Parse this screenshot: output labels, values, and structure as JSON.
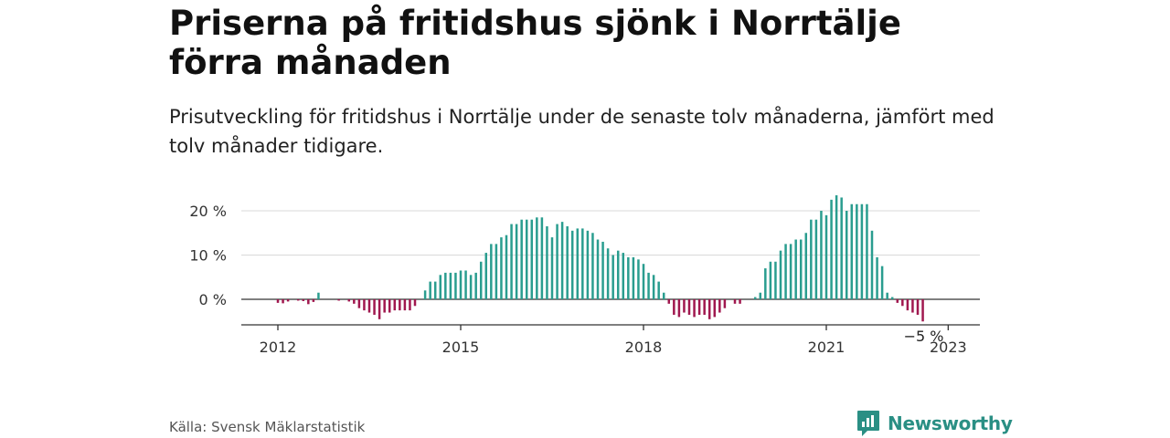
{
  "header": {
    "title": "Priserna på fritidshus sjönk i Norrtälje förra månaden",
    "subtitle": "Prisutveckling för fritidshus i Norrtälje under de senaste tolv månaderna, jämfört med tolv månader tidigare."
  },
  "footer": {
    "source": "Källa: Svensk Mäklarstatistik",
    "brand": "Newsworthy"
  },
  "colors": {
    "positive": "#2a9d8f",
    "negative": "#a0184f",
    "brand": "#2a8f84",
    "grid": "#d9d9d9"
  },
  "chart_data": {
    "type": "bar",
    "ylim": [
      -6,
      24
    ],
    "yticks": [
      0,
      10,
      20
    ],
    "ytick_labels": [
      "0 %",
      "10 %",
      "20 %"
    ],
    "xtick_labels": [
      {
        "label": "2012",
        "month_index": 0
      },
      {
        "label": "2015",
        "month_index": 36
      },
      {
        "label": "2018",
        "month_index": 72
      },
      {
        "label": "2021",
        "month_index": 108
      },
      {
        "label": "2023",
        "month_index": 132
      }
    ],
    "grid": true,
    "last_label": "−5 %",
    "x_start": "2012-01",
    "values": [
      -0.8,
      -0.9,
      -0.5,
      null,
      -0.3,
      -0.4,
      -1.1,
      -0.6,
      1.5,
      null,
      null,
      null,
      -0.3,
      null,
      -0.5,
      -1.0,
      -2.0,
      -2.5,
      -3.0,
      -3.5,
      -4.5,
      -3.0,
      -3.0,
      -2.5,
      -2.5,
      -2.5,
      -2.5,
      -1.5,
      null,
      2.0,
      4.0,
      4.0,
      5.5,
      6.0,
      6.0,
      6.0,
      6.5,
      6.5,
      5.5,
      6.0,
      8.5,
      10.5,
      12.5,
      12.5,
      14.0,
      14.5,
      17.0,
      17.0,
      18.0,
      18.0,
      18.0,
      18.5,
      18.5,
      16.5,
      14.0,
      17.0,
      17.5,
      16.5,
      15.5,
      16.0,
      16.0,
      15.5,
      15.0,
      13.5,
      13.0,
      11.5,
      10.0,
      11.0,
      10.5,
      9.5,
      9.5,
      9.0,
      8.0,
      6.0,
      5.5,
      4.0,
      1.5,
      -1.0,
      -3.5,
      -4.0,
      -3.0,
      -3.5,
      -4.0,
      -3.5,
      -3.5,
      -4.5,
      -4.0,
      -3.0,
      -2.0,
      null,
      -1.0,
      -1.0,
      null,
      null,
      0.5,
      1.5,
      7.0,
      8.5,
      8.5,
      11.0,
      12.5,
      12.5,
      13.5,
      13.5,
      15.0,
      18.0,
      18.0,
      20.0,
      19.0,
      22.5,
      23.5,
      23.0,
      20.0,
      21.5,
      21.5,
      21.5,
      21.5,
      15.5,
      9.5,
      7.5,
      1.5,
      0.5,
      -0.8,
      -1.5,
      -2.5,
      -3.0,
      -3.5,
      -5.0
    ]
  }
}
